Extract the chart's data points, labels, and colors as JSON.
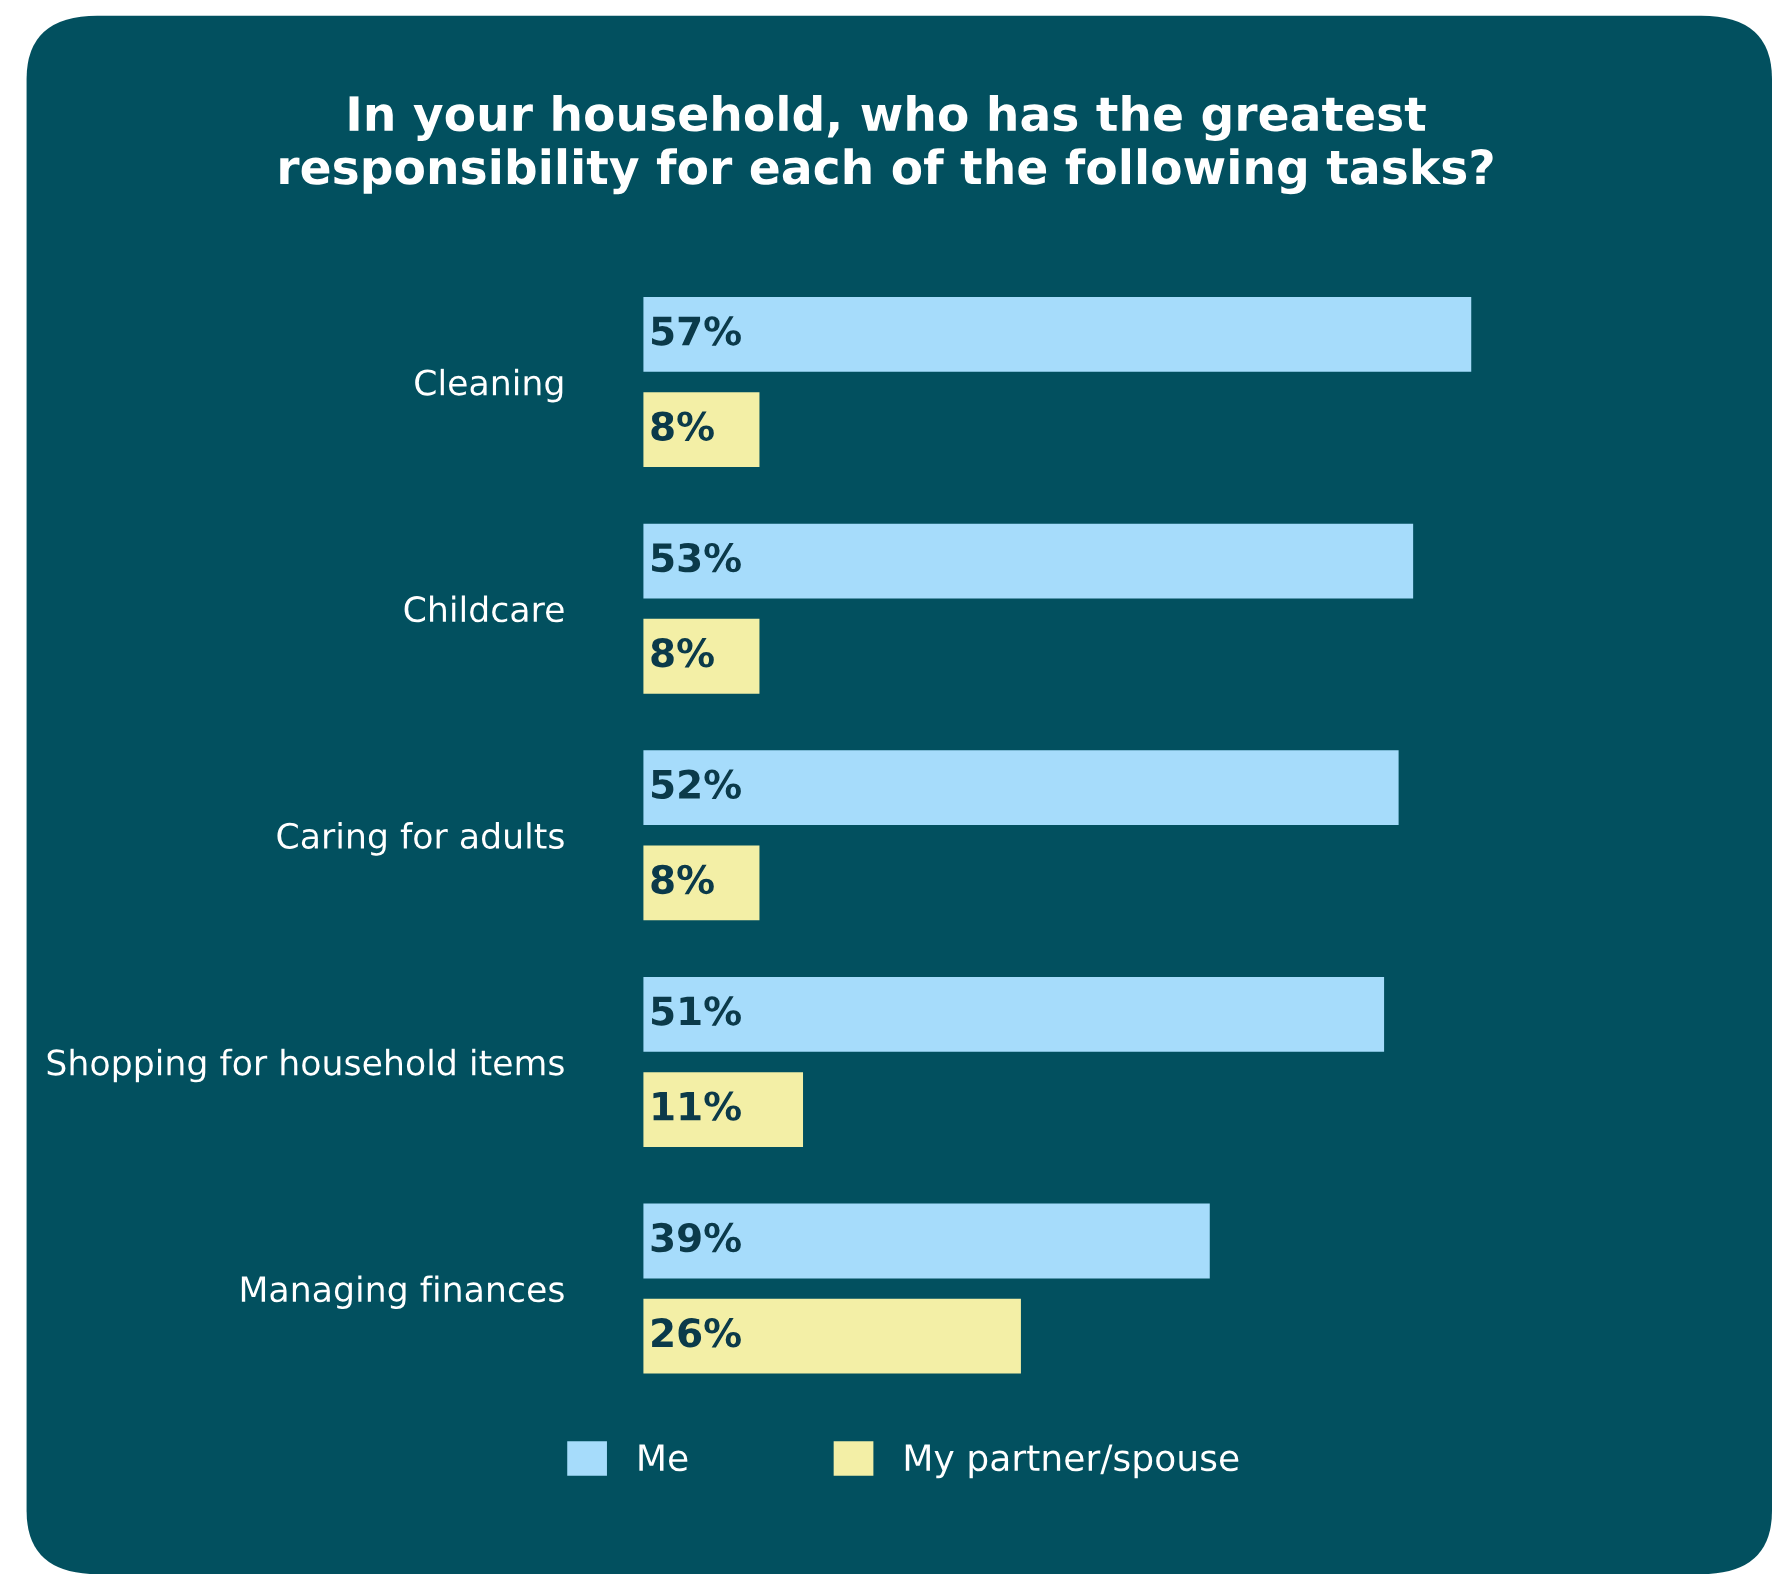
{
  "chart_data": {
    "type": "bar",
    "orientation": "horizontal",
    "title": "In your household, who has the greatest responsibility for each of the following tasks?",
    "categories": [
      "Cleaning",
      "Childcare",
      "Caring for adults",
      "Shopping for household items",
      "Managing finances"
    ],
    "series": [
      {
        "name": "Me",
        "color": "#a6dcfb",
        "values": [
          57,
          53,
          52,
          51,
          39
        ],
        "value_labels": [
          "57%",
          "53%",
          "52%",
          "51%",
          "39%"
        ]
      },
      {
        "name": "My partner/spouse",
        "color": "#f3efa6",
        "values": [
          8,
          8,
          8,
          11,
          26
        ],
        "value_labels": [
          "8%",
          "8%",
          "8%",
          "11%",
          "26%"
        ]
      }
    ],
    "legend": "bottom",
    "tick_labels": "y"
  }
}
